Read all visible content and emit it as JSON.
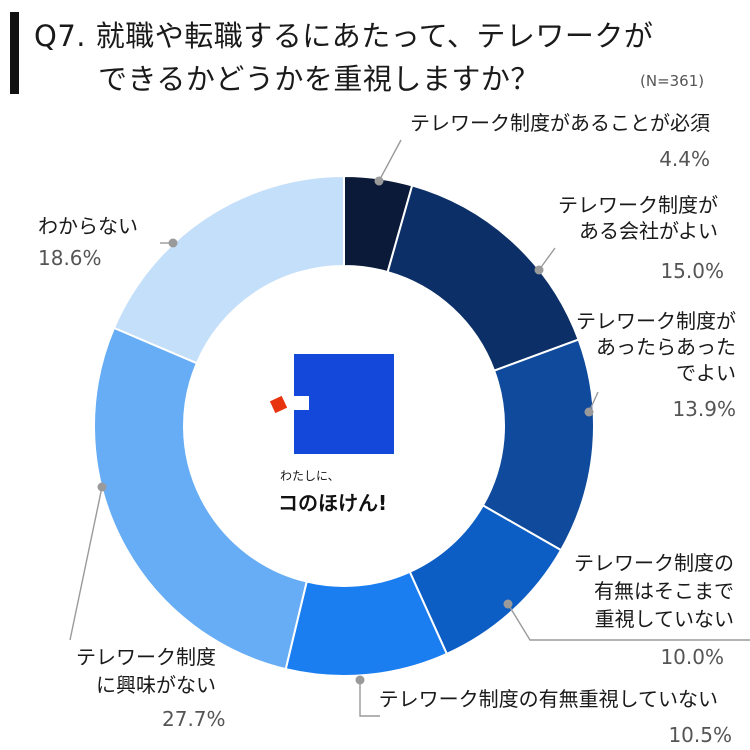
{
  "title": {
    "line1": "Q7. 就職や転職するにあたって、テレワークが",
    "line2": "できるかどうかを重視しますか？",
    "sample": "(N=361)"
  },
  "logo": {
    "sub": "わたしに、",
    "main": "コのほけん!"
  },
  "chart_data": {
    "type": "pie",
    "donut": true,
    "categories": [
      "テレワーク制度があることが必須",
      "テレワーク制度がある会社がよい",
      "テレワーク制度があったらあったでよい",
      "テレワーク制度の有無はそこまで重視していない",
      "テレワーク制度の有無重視していない",
      "テレワーク制度に興味がない",
      "わからない"
    ],
    "values": [
      4.4,
      15.0,
      13.9,
      10.0,
      10.5,
      27.7,
      18.6
    ],
    "value_labels": [
      "4.4%",
      "15.0%",
      "13.9%",
      "10.0%",
      "10.5%",
      "27.7%",
      "18.6%"
    ],
    "label_lines": [
      [
        "テレワーク制度があることが必須"
      ],
      [
        "テレワーク制度が",
        "ある会社がよい"
      ],
      [
        "テレワーク制度が",
        "あったらあった",
        "でよい"
      ],
      [
        "テレワーク制度の",
        "有無はそこまで",
        "重視していない"
      ],
      [
        "テレワーク制度の有無重視していない"
      ],
      [
        "テレワーク制度",
        "に興味がない"
      ],
      [
        "わからない"
      ]
    ],
    "colors": [
      "#0a1a38",
      "#0b2f66",
      "#0f4a9c",
      "#0c5dc4",
      "#1a7df0",
      "#66adf5",
      "#c4dff9"
    ],
    "unit": "%"
  }
}
